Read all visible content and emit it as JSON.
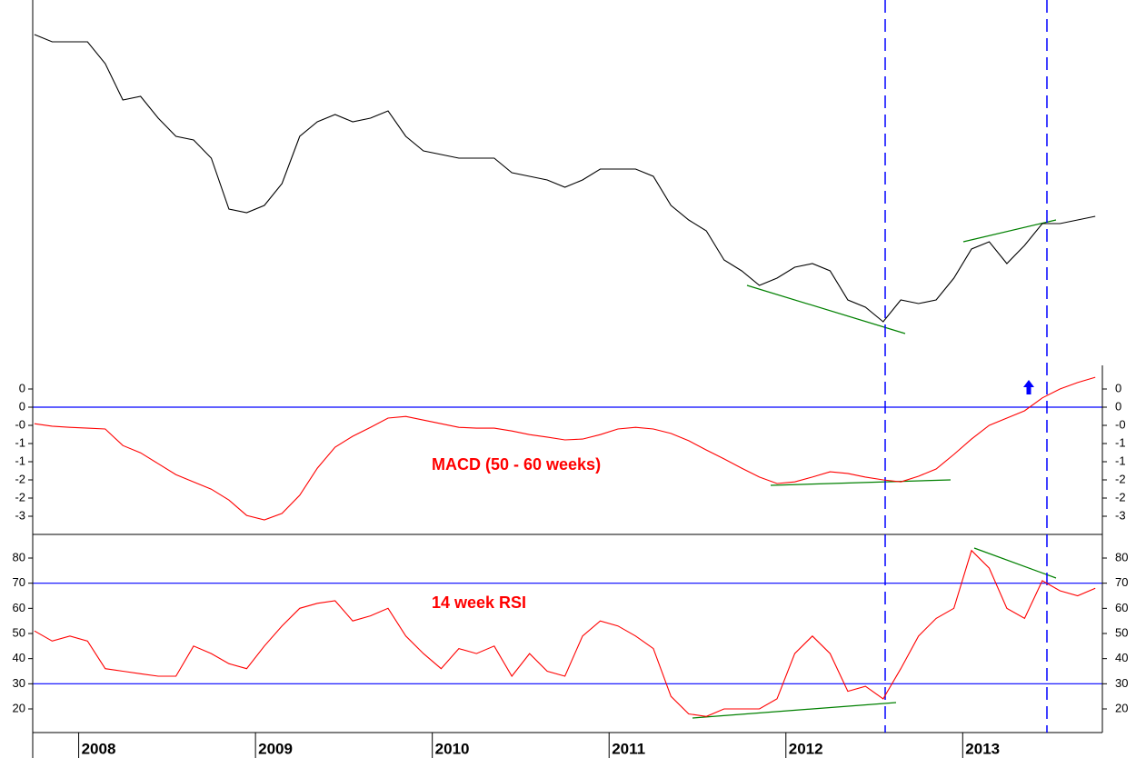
{
  "chart_data": [
    {
      "type": "line",
      "color": "#000000",
      "xlim": [
        2007.74,
        2013.79
      ],
      "ylim": [
        0,
        100.5
      ],
      "x": [
        2007.75,
        2007.85,
        2007.95,
        2008.05,
        2008.15,
        2008.25,
        2008.35,
        2008.45,
        2008.55,
        2008.65,
        2008.75,
        2008.85,
        2008.95,
        2009.05,
        2009.15,
        2009.25,
        2009.35,
        2009.45,
        2009.55,
        2009.65,
        2009.75,
        2009.85,
        2009.95,
        2010.05,
        2010.15,
        2010.25,
        2010.35,
        2010.45,
        2010.55,
        2010.65,
        2010.75,
        2010.85,
        2010.95,
        2011.05,
        2011.15,
        2011.25,
        2011.35,
        2011.45,
        2011.55,
        2011.65,
        2011.75,
        2011.85,
        2011.95,
        2012.05,
        2012.15,
        2012.25,
        2012.35,
        2012.45,
        2012.55,
        2012.65,
        2012.75,
        2012.85,
        2012.95,
        2013.05,
        2013.15,
        2013.25,
        2013.35,
        2013.45,
        2013.55,
        2013.65,
        2013.75
      ],
      "values": [
        91,
        89,
        89,
        89,
        83,
        73,
        74,
        68,
        63,
        62,
        57,
        43,
        42,
        44,
        50,
        63,
        67,
        69,
        67,
        68,
        70,
        63,
        59,
        58,
        57,
        57,
        57,
        53,
        52,
        51,
        49,
        51,
        54,
        54,
        54,
        52,
        44,
        40,
        37,
        29,
        26,
        22,
        24,
        27,
        28,
        26,
        18,
        16,
        12,
        18,
        17,
        18,
        24,
        32,
        34,
        28,
        33,
        39,
        39,
        40,
        41
      ]
    },
    {
      "type": "line",
      "color": "#ff0000",
      "annotation": "MACD (50 - 60 weeks)",
      "xlim": [
        2007.74,
        2013.79
      ],
      "ylim": [
        -3.15,
        1.035
      ],
      "yticks": [
        {
          "value": 0.45,
          "label": "0"
        },
        0,
        {
          "value": -0.45,
          "label": "-0"
        },
        {
          "value": -0.9,
          "label": "-1"
        },
        {
          "value": -1.35,
          "label": "-1"
        },
        {
          "value": -1.8,
          "label": "-2"
        },
        {
          "value": -2.25,
          "label": "-2"
        },
        {
          "value": -2.7,
          "label": "-3"
        }
      ],
      "hlines": [
        0
      ],
      "x": [
        2007.75,
        2007.85,
        2007.95,
        2008.05,
        2008.15,
        2008.25,
        2008.35,
        2008.45,
        2008.55,
        2008.65,
        2008.75,
        2008.85,
        2008.95,
        2009.05,
        2009.15,
        2009.25,
        2009.35,
        2009.45,
        2009.55,
        2009.65,
        2009.75,
        2009.85,
        2009.95,
        2010.05,
        2010.15,
        2010.25,
        2010.35,
        2010.45,
        2010.55,
        2010.65,
        2010.75,
        2010.85,
        2010.95,
        2011.05,
        2011.15,
        2011.25,
        2011.35,
        2011.45,
        2011.55,
        2011.65,
        2011.75,
        2011.85,
        2011.95,
        2012.05,
        2012.15,
        2012.25,
        2012.35,
        2012.45,
        2012.55,
        2012.65,
        2012.75,
        2012.85,
        2012.95,
        2013.05,
        2013.15,
        2013.25,
        2013.35,
        2013.45,
        2013.55,
        2013.65,
        2013.75
      ],
      "values": [
        -0.41,
        -0.47,
        -0.5,
        -0.52,
        -0.54,
        -0.95,
        -1.13,
        -1.4,
        -1.67,
        -1.85,
        -2.03,
        -2.3,
        -2.68,
        -2.79,
        -2.63,
        -2.18,
        -1.51,
        -0.99,
        -0.72,
        -0.5,
        -0.27,
        -0.23,
        -0.32,
        -0.41,
        -0.5,
        -0.52,
        -0.52,
        -0.59,
        -0.68,
        -0.74,
        -0.81,
        -0.79,
        -0.68,
        -0.54,
        -0.5,
        -0.54,
        -0.65,
        -0.83,
        -1.06,
        -1.28,
        -1.51,
        -1.73,
        -1.89,
        -1.85,
        -1.73,
        -1.6,
        -1.64,
        -1.73,
        -1.8,
        -1.85,
        -1.71,
        -1.53,
        -1.17,
        -0.79,
        -0.45,
        -0.27,
        -0.09,
        0.23,
        0.45,
        0.61,
        0.74
      ]
    },
    {
      "type": "line",
      "color": "#ff0000",
      "annotation": "14 week RSI",
      "xlim": [
        2007.74,
        2013.79
      ],
      "ylim": [
        10.6,
        89.4
      ],
      "yticks": [
        80,
        70,
        60,
        50,
        40,
        30,
        20
      ],
      "hlines": [
        70,
        30
      ],
      "xticks": [
        2008,
        2009,
        2010,
        2011,
        2012,
        2013
      ],
      "x": [
        2007.75,
        2007.85,
        2007.95,
        2008.05,
        2008.15,
        2008.25,
        2008.35,
        2008.45,
        2008.55,
        2008.65,
        2008.75,
        2008.85,
        2008.95,
        2009.05,
        2009.15,
        2009.25,
        2009.35,
        2009.45,
        2009.55,
        2009.65,
        2009.75,
        2009.85,
        2009.95,
        2010.05,
        2010.15,
        2010.25,
        2010.35,
        2010.45,
        2010.55,
        2010.65,
        2010.75,
        2010.85,
        2010.95,
        2011.05,
        2011.15,
        2011.25,
        2011.35,
        2011.45,
        2011.55,
        2011.65,
        2011.75,
        2011.85,
        2011.95,
        2012.05,
        2012.15,
        2012.25,
        2012.35,
        2012.45,
        2012.55,
        2012.65,
        2012.75,
        2012.85,
        2012.95,
        2013.05,
        2013.15,
        2013.25,
        2013.35,
        2013.45,
        2013.55,
        2013.65,
        2013.75
      ],
      "values": [
        51,
        47,
        49,
        47,
        36,
        35,
        34,
        33,
        33,
        45,
        42,
        38,
        36,
        45,
        53,
        60,
        62,
        63,
        55,
        57,
        60,
        49,
        42,
        36,
        44,
        42,
        45,
        33,
        42,
        35,
        33,
        49,
        55,
        53,
        49,
        44,
        25,
        18,
        17,
        20,
        20,
        20,
        24,
        42,
        49,
        42,
        27,
        29,
        24,
        36,
        49,
        56,
        60,
        83,
        76,
        60,
        56,
        71,
        67,
        65,
        68
      ]
    }
  ]
}
